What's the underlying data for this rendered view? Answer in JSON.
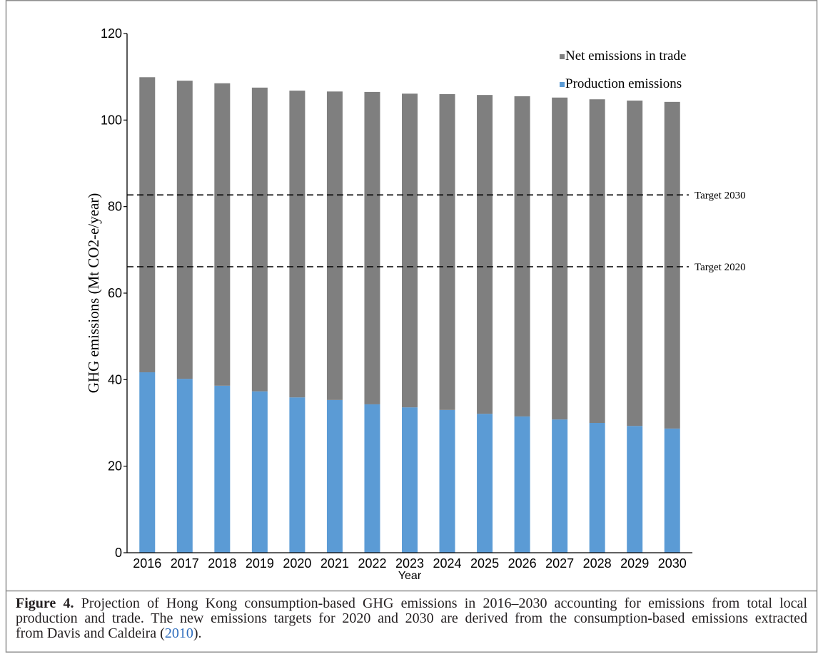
{
  "chart_data": {
    "type": "bar",
    "stacked": true,
    "categories": [
      "2016",
      "2017",
      "2018",
      "2019",
      "2020",
      "2021",
      "2022",
      "2023",
      "2024",
      "2025",
      "2026",
      "2027",
      "2028",
      "2029",
      "2030"
    ],
    "series": [
      {
        "name": "Production emissions",
        "color": "#5b9bd5",
        "values": [
          41.7,
          40.2,
          38.6,
          37.3,
          35.9,
          35.3,
          34.3,
          33.6,
          33.0,
          32.1,
          31.5,
          30.8,
          30.0,
          29.3,
          28.7
        ]
      },
      {
        "name": "Net emissions in trade",
        "color": "#7f7f7f",
        "values": [
          68.2,
          68.9,
          69.9,
          70.2,
          70.9,
          71.3,
          72.2,
          72.5,
          73.0,
          73.7,
          74.0,
          74.4,
          74.8,
          75.2,
          75.5
        ]
      }
    ],
    "reference_lines": [
      {
        "label": "Target 2030",
        "value": 82.7,
        "line_style": "dashed",
        "color": "#000000"
      },
      {
        "label": "Target 2020",
        "value": 66.1,
        "line_style": "dashed",
        "color": "#000000"
      }
    ],
    "xlabel": "Year",
    "ylabel": "GHG emissions (Mt CO2-e/year)",
    "ylim": [
      0,
      120
    ],
    "yticks": [
      0,
      20,
      40,
      60,
      80,
      100,
      120
    ],
    "grid": false,
    "legend": {
      "position": "top-right"
    }
  },
  "caption": {
    "label": "Figure 4.",
    "line1": "Projection of Hong Kong consumption-based GHG emissions in 2016–2030 accounting for emissions from total local",
    "line2": "production and trade. The new emissions targets for 2020 and 2030 are derived from the consumption-based emissions extracted",
    "line3_before": "from Davis and Caldeira (",
    "citation_year": "2010",
    "line3_after": ").",
    "link_color": "#2e6dbd"
  }
}
